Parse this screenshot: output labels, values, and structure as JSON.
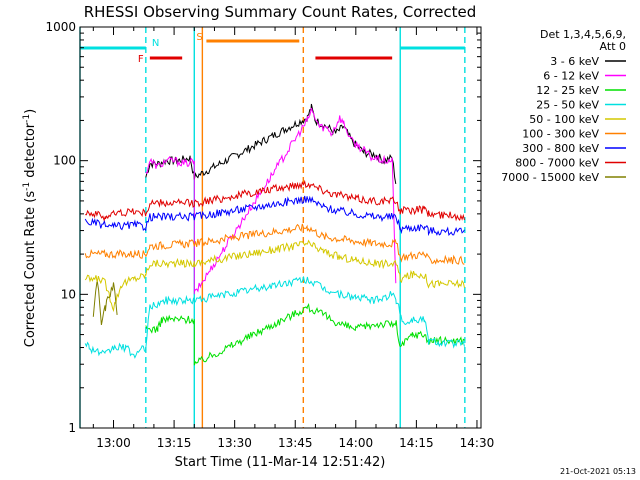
{
  "window": {
    "title": "RHESSI Observing Summary Count Rates, Corrected",
    "footer_date": "21-Oct-2021 05:13"
  },
  "chart_data": {
    "type": "line",
    "title": "RHESSI Observing Summary Count Rates, Corrected",
    "xlabel": "Start Time (11-Mar-14 12:51:42)",
    "ylabel": "Corrected Count Rate (s⁻¹ detector⁻¹)",
    "ylabel_main": "Corrected Count Rate (s",
    "ylabel_mid": " detector",
    "ylabel_end": ")",
    "ylabel_sup": "-1",
    "yscale": "log",
    "ylim": [
      1,
      1000
    ],
    "xlim": [
      "12:51:42",
      "14:31:00"
    ],
    "x_ticks": [
      "13:00",
      "13:15",
      "13:30",
      "13:45",
      "14:00",
      "14:15",
      "14:30"
    ],
    "y_ticks": [
      "1",
      "10",
      "100",
      "1000"
    ],
    "legend": {
      "placement": "right",
      "header_1": "Det 1,3,4,5,6,9,",
      "header_2": "Att 0",
      "entries": [
        {
          "label": "3 - 6 keV",
          "color": "#000000"
        },
        {
          "label": "6 - 12 keV",
          "color": "#ff00ff"
        },
        {
          "label": "12 - 25 keV",
          "color": "#00e000"
        },
        {
          "label": "25 - 50 keV",
          "color": "#00e0e0"
        },
        {
          "label": "50 - 100 keV",
          "color": "#d4c800"
        },
        {
          "label": "100 - 300 keV",
          "color": "#ff8000"
        },
        {
          "label": "300 - 800 keV",
          "color": "#0000ff"
        },
        {
          "label": "800 - 7000 keV",
          "color": "#e00000"
        },
        {
          "label": "7000 - 15000 keV",
          "color": "#808000"
        }
      ]
    },
    "state_bars": [
      {
        "label": "F",
        "color": "#e00000",
        "segments": [
          [
            "13:09",
            "13:17"
          ],
          [
            "13:50",
            "14:09"
          ]
        ]
      },
      {
        "label": "N",
        "color": "#00e0e0",
        "segments": [
          [
            "12:51:42",
            "13:08"
          ],
          [
            "14:11",
            "14:27"
          ]
        ]
      },
      {
        "label": "S",
        "color": "#ff8000",
        "segments": [
          [
            "13:23",
            "13:46"
          ]
        ]
      }
    ],
    "vertical_lines": [
      {
        "time": "12:51:42",
        "color": "#00e0e0",
        "style": "solid"
      },
      {
        "time": "13:08",
        "color": "#00e0e0",
        "style": "dashed"
      },
      {
        "time": "13:20",
        "color": "#00e0e0",
        "style": "solid"
      },
      {
        "time": "13:22",
        "color": "#ff8000",
        "style": "solid"
      },
      {
        "time": "13:47",
        "color": "#ff8000",
        "style": "dashed"
      },
      {
        "time": "14:11",
        "color": "#00e0e0",
        "style": "solid"
      },
      {
        "time": "14:27",
        "color": "#00e0e0",
        "style": "dashed"
      }
    ],
    "series": [
      {
        "name": "3 - 6 keV",
        "color": "#000000",
        "points": [
          [
            "13:08",
            75
          ],
          [
            "13:09",
            95
          ],
          [
            "13:11",
            95
          ],
          [
            "13:13",
            100
          ],
          [
            "13:16",
            100
          ],
          [
            "13:19",
            105
          ],
          [
            "13:20",
            75
          ],
          [
            "13:48",
            210
          ],
          [
            "13:49",
            250
          ],
          [
            "13:50",
            200
          ],
          [
            "13:52",
            185
          ],
          [
            "13:54",
            170
          ],
          [
            "13:55",
            160
          ],
          [
            "13:57",
            180
          ],
          [
            "13:59",
            140
          ],
          [
            "14:02",
            115
          ],
          [
            "14:05",
            110
          ],
          [
            "14:07",
            100
          ],
          [
            "14:09",
            105
          ],
          [
            "14:10",
            65
          ]
        ]
      },
      {
        "name": "6 - 12 keV",
        "color": "#ff00ff",
        "points": [
          [
            "13:08",
            80
          ],
          [
            "13:09",
            100
          ],
          [
            "13:11",
            90
          ],
          [
            "13:13",
            100
          ],
          [
            "13:15",
            100
          ],
          [
            "13:18",
            95
          ],
          [
            "13:20",
            100
          ],
          [
            "13:20",
            10
          ],
          [
            "13:48",
            200
          ],
          [
            "13:49",
            240
          ],
          [
            "13:51",
            180
          ],
          [
            "13:53",
            175
          ],
          [
            "13:54",
            160
          ],
          [
            "13:56",
            210
          ],
          [
            "13:57",
            190
          ],
          [
            "13:59",
            140
          ],
          [
            "14:02",
            120
          ],
          [
            "14:04",
            105
          ],
          [
            "14:07",
            100
          ],
          [
            "14:09",
            100
          ],
          [
            "14:10",
            9.5
          ]
        ]
      },
      {
        "name": "12 - 25 keV",
        "color": "#00e000",
        "points": [
          [
            "13:08",
            5.5
          ],
          [
            "13:11",
            5.5
          ],
          [
            "13:12",
            6.5
          ],
          [
            "13:20",
            6.5
          ],
          [
            "13:20",
            3
          ],
          [
            "13:48",
            8
          ],
          [
            "13:52",
            7
          ],
          [
            "13:56",
            6
          ],
          [
            "14:00",
            5.5
          ],
          [
            "14:05",
            6
          ],
          [
            "14:10",
            6
          ],
          [
            "14:11",
            4
          ],
          [
            "14:14",
            5
          ],
          [
            "14:17",
            5
          ],
          [
            "14:18",
            4.5
          ],
          [
            "14:27",
            4.5
          ]
        ]
      },
      {
        "name": "25 - 50 keV",
        "color": "#00e0e0",
        "points": [
          [
            "12:53",
            4.5
          ],
          [
            "12:54",
            4
          ],
          [
            "12:58",
            3.5
          ],
          [
            "13:00",
            4
          ],
          [
            "13:03",
            4
          ],
          [
            "13:05",
            3.5
          ],
          [
            "13:08",
            4
          ],
          [
            "13:09",
            8
          ],
          [
            "13:13",
            9
          ],
          [
            "13:20",
            9
          ],
          [
            "13:48",
            13
          ],
          [
            "13:52",
            11
          ],
          [
            "13:56",
            10
          ],
          [
            "14:00",
            9.5
          ],
          [
            "14:05",
            9
          ],
          [
            "14:09",
            10
          ],
          [
            "14:10",
            9
          ],
          [
            "14:12",
            6
          ],
          [
            "14:14",
            6.5
          ],
          [
            "14:17",
            6.5
          ],
          [
            "14:18",
            4.5
          ],
          [
            "14:27",
            4.2
          ]
        ]
      },
      {
        "name": "50 - 100 keV",
        "color": "#d4c800",
        "points": [
          [
            "12:53",
            13
          ],
          [
            "12:57",
            13
          ],
          [
            "12:58",
            12
          ],
          [
            "13:00",
            8
          ],
          [
            "13:02",
            12
          ],
          [
            "13:05",
            13
          ],
          [
            "13:08",
            14
          ],
          [
            "13:09",
            17
          ],
          [
            "13:20",
            17
          ],
          [
            "13:48",
            24
          ],
          [
            "13:52",
            21
          ],
          [
            "13:56",
            19
          ],
          [
            "14:00",
            18
          ],
          [
            "14:05",
            17
          ],
          [
            "14:10",
            17
          ],
          [
            "14:11",
            13
          ],
          [
            "14:14",
            14
          ],
          [
            "14:17",
            14
          ],
          [
            "14:18",
            12
          ],
          [
            "14:27",
            12
          ]
        ]
      },
      {
        "name": "100 - 300 keV",
        "color": "#ff8000",
        "points": [
          [
            "12:53",
            20
          ],
          [
            "13:05",
            20
          ],
          [
            "13:08",
            20
          ],
          [
            "13:09",
            23
          ],
          [
            "13:20",
            24
          ],
          [
            "13:48",
            32
          ],
          [
            "13:52",
            27
          ],
          [
            "13:56",
            26
          ],
          [
            "14:00",
            25
          ],
          [
            "14:05",
            24
          ],
          [
            "14:10",
            24
          ],
          [
            "14:11",
            19
          ],
          [
            "14:17",
            20
          ],
          [
            "14:18",
            18
          ],
          [
            "14:27",
            18
          ]
        ]
      },
      {
        "name": "300 - 800 keV",
        "color": "#0000ff",
        "points": [
          [
            "12:53",
            35
          ],
          [
            "13:00",
            32
          ],
          [
            "13:05",
            33
          ],
          [
            "13:08",
            32
          ],
          [
            "13:09",
            38
          ],
          [
            "13:20",
            38
          ],
          [
            "13:48",
            52
          ],
          [
            "13:52",
            45
          ],
          [
            "13:56",
            42
          ],
          [
            "14:00",
            40
          ],
          [
            "14:05",
            38
          ],
          [
            "14:10",
            38
          ],
          [
            "14:11",
            31
          ],
          [
            "14:17",
            32
          ],
          [
            "14:18",
            30
          ],
          [
            "14:27",
            29
          ]
        ]
      },
      {
        "name": "800 - 7000 keV",
        "color": "#e00000",
        "points": [
          [
            "12:53",
            42
          ],
          [
            "12:55",
            40
          ],
          [
            "12:58",
            38
          ],
          [
            "13:00",
            40
          ],
          [
            "13:05",
            42
          ],
          [
            "13:08",
            40
          ],
          [
            "13:09",
            48
          ],
          [
            "13:20",
            48
          ],
          [
            "13:48",
            68
          ],
          [
            "13:52",
            60
          ],
          [
            "13:56",
            55
          ],
          [
            "14:00",
            52
          ],
          [
            "14:05",
            50
          ],
          [
            "14:10",
            50
          ],
          [
            "14:11",
            42
          ],
          [
            "14:17",
            43
          ],
          [
            "14:18",
            40
          ],
          [
            "14:27",
            38
          ]
        ]
      },
      {
        "name": "7000 - 15000 keV",
        "color": "#808000",
        "points": [
          [
            "12:55",
            7
          ],
          [
            "12:56",
            13
          ],
          [
            "12:57",
            6
          ],
          [
            "12:58",
            8
          ],
          [
            "13:00",
            12
          ],
          [
            "13:01",
            7
          ]
        ]
      }
    ]
  }
}
